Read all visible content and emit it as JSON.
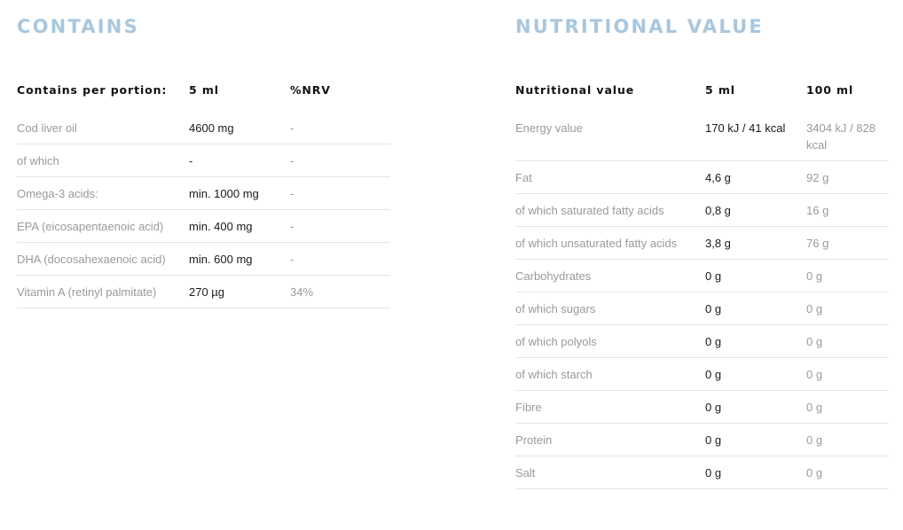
{
  "contains": {
    "title": "CONTAINS",
    "headers": [
      "Contains per portion:",
      "5 ml",
      "%NRV"
    ],
    "rows": [
      [
        "Cod liver oil",
        "4600 mg",
        "-"
      ],
      [
        "of which",
        "-",
        "-"
      ],
      [
        "Omega-3 acids:",
        "min. 1000 mg",
        "-"
      ],
      [
        "EPA (eicosapentaenoic acid)",
        "min. 400 mg",
        "-"
      ],
      [
        "DHA (docosahexaenoic acid)",
        "min. 600 mg",
        "-"
      ],
      [
        "Vitamin A (retinyl palmitate)",
        "270 µg",
        "34%"
      ]
    ]
  },
  "nutrition": {
    "title": "NUTRITIONAL VALUE",
    "headers": [
      "Nutritional value",
      "5 ml",
      "100 ml"
    ],
    "rows": [
      [
        "Energy value",
        "170 kJ / 41 kcal",
        "3404 kJ / 828 kcal"
      ],
      [
        "Fat",
        "4,6 g",
        "92 g"
      ],
      [
        "of which saturated fatty acids",
        "0,8 g",
        "16 g"
      ],
      [
        "of which unsaturated fatty acids",
        "3,8 g",
        "76 g"
      ],
      [
        "Carbohydrates",
        "0 g",
        "0 g"
      ],
      [
        "of which sugars",
        "0 g",
        "0 g"
      ],
      [
        "of which polyols",
        "0 g",
        "0 g"
      ],
      [
        "of which starch",
        "0 g",
        "0 g"
      ],
      [
        "Fibre",
        "0 g",
        "0 g"
      ],
      [
        "Protein",
        "0 g",
        "0 g"
      ],
      [
        "Salt",
        "0 g",
        "0 g"
      ]
    ]
  },
  "colors": {
    "title": "#a8c7de",
    "label": "#9a9a9a",
    "value": "#1a1a1a",
    "divider": "#e4e4e4"
  }
}
